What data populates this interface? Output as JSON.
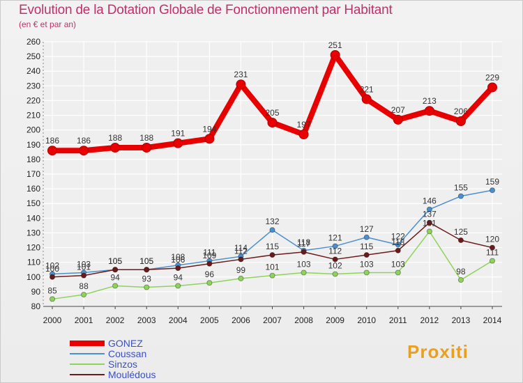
{
  "title": "Evolution de la Dotation Globale de Fonctionnement par Habitant",
  "subtitle": "(en € et par an)",
  "brand": "Proxiti",
  "colors": {
    "title": "#c0306a",
    "legend_text": "#3a4fc4"
  },
  "chart_data": {
    "type": "line",
    "x": [
      2000,
      2001,
      2002,
      2003,
      2004,
      2005,
      2006,
      2007,
      2008,
      2009,
      2010,
      2011,
      2012,
      2013,
      2014
    ],
    "ylim": [
      80,
      260
    ],
    "yticks": [
      80,
      90,
      100,
      110,
      120,
      130,
      140,
      150,
      160,
      170,
      180,
      190,
      200,
      210,
      220,
      230,
      240,
      250,
      260
    ],
    "grid": true,
    "legend_position": "bottom-left",
    "series": [
      {
        "name": "GONEZ",
        "color": "#e80000",
        "values": [
          186,
          186,
          188,
          188,
          191,
          194,
          231,
          205,
          197,
          251,
          221,
          207,
          213,
          206,
          229
        ],
        "labels": [
          "186",
          "186",
          "188",
          "188",
          "191",
          "194",
          "231",
          "205",
          "197",
          "251",
          "221",
          "207",
          "213",
          "206",
          "229"
        ]
      },
      {
        "name": "Coussan",
        "color": "#4a90d0",
        "values": [
          102,
          103,
          105,
          105,
          108,
          111,
          114,
          132,
          118,
          121,
          127,
          122,
          146,
          155,
          159
        ],
        "labels": [
          "102",
          "103",
          "105",
          "105",
          "108",
          "111",
          "114",
          "132",
          "118",
          "121",
          "127",
          "122",
          "146",
          "155",
          "159"
        ]
      },
      {
        "name": "Sinzos",
        "color": "#8ed35a",
        "values": [
          85,
          88,
          94,
          93,
          94,
          96,
          99,
          101,
          103,
          102,
          103,
          103,
          131,
          98,
          111
        ],
        "labels": [
          "85",
          "88",
          "94",
          "93",
          "94",
          "96",
          "99",
          "101",
          "103",
          "102",
          "103",
          "103",
          "131",
          "98",
          "111"
        ]
      },
      {
        "name": "Moulédous",
        "color": "#6b1a1a",
        "values": [
          100,
          101,
          105,
          105,
          106,
          109,
          112,
          115,
          117,
          112,
          115,
          118,
          137,
          125,
          120
        ],
        "labels": [
          "100",
          "101",
          "105",
          "105",
          "106",
          "109",
          "112",
          "115",
          "117",
          "112",
          "115",
          "118",
          "137",
          "125",
          "120"
        ]
      }
    ]
  }
}
